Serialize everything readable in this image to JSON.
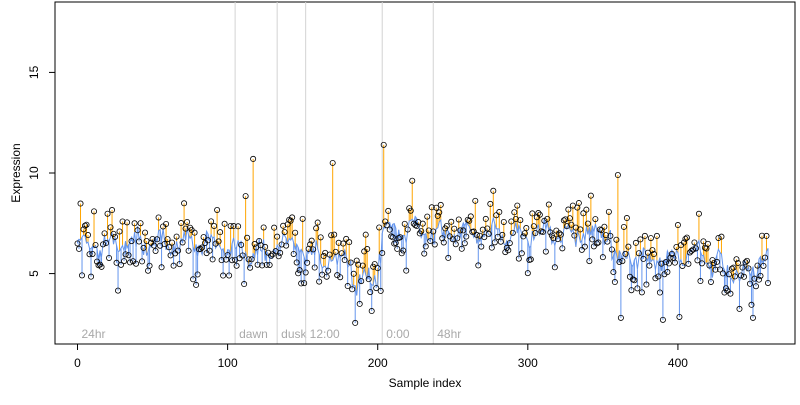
{
  "chart_data": {
    "type": "scatter",
    "title": "",
    "xlabel": "Sample index",
    "ylabel": "Expression",
    "xlim": [
      -15,
      478
    ],
    "ylim": [
      1.5,
      18.5
    ],
    "x_ticks": [
      0,
      100,
      200,
      300,
      400
    ],
    "y_ticks": [
      5,
      10,
      15
    ],
    "grid": false,
    "legend": "none",
    "colors": {
      "above_trend": "#FFA500",
      "below_trend": "#6495ED",
      "trend_line": "#6495ED",
      "point_edge": "#000000",
      "phase_line": "#D3D3D3",
      "phase_label": "#A9A9A9"
    },
    "phase_markers": [
      {
        "x": 0,
        "label": "24hr"
      },
      {
        "x": 105,
        "label": "dawn"
      },
      {
        "x": 133,
        "label": "dusk"
      },
      {
        "x": 152,
        "label": "12:00"
      },
      {
        "x": 203,
        "label": "0:00"
      },
      {
        "x": 237,
        "label": "48hr"
      }
    ],
    "segments": [
      {
        "start": 0,
        "end": 104,
        "mean": 6.5
      },
      {
        "start": 105,
        "end": 132,
        "mean": 6.0
      },
      {
        "start": 133,
        "end": 151,
        "mean": 6.5
      },
      {
        "start": 152,
        "end": 202,
        "mean": 5.8
      },
      {
        "start": 203,
        "end": 236,
        "mean": 7.1
      },
      {
        "start": 237,
        "end": 355,
        "mean": 7.0
      },
      {
        "start": 356,
        "end": 460,
        "mean": 5.8
      }
    ],
    "outliers": [
      {
        "x": 117,
        "value": 10.7
      },
      {
        "x": 170,
        "value": 10.5
      },
      {
        "x": 204,
        "value": 11.4
      },
      {
        "x": 360,
        "value": 9.9
      },
      {
        "x": 362,
        "value": 2.8
      },
      {
        "x": 390,
        "value": 2.7
      },
      {
        "x": 450,
        "value": 2.8
      }
    ]
  }
}
